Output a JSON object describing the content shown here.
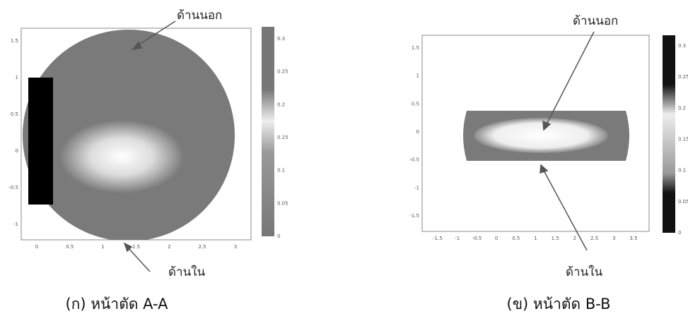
{
  "panels": [
    {
      "caption": "(ก) หน้าตัด A-A",
      "outer_label": "ด้านนอก",
      "inner_label": "ด้านใน",
      "yticks": [
        "1.5",
        "1",
        "0.5",
        "0",
        "-0.5",
        "-1"
      ],
      "xticks": [
        "0",
        "0.5",
        "1",
        "1.5",
        "2",
        "2.5",
        "3"
      ],
      "colorbar_ticks": [
        "0.3",
        "0.25",
        "0.2",
        "0.15",
        "0.1",
        "0.05",
        "0"
      ]
    },
    {
      "caption": "(ข) หน้าตัด B-B",
      "outer_label": "ด้านนอก",
      "inner_label": "ด้านใน",
      "yticks": [
        "1.5",
        "1",
        "0.5",
        "0",
        "-0.5",
        "-1",
        "-1.5"
      ],
      "xticks": [
        "-1.5",
        "-1",
        "-0.5",
        "0",
        "0.5",
        "1",
        "1.5",
        "2",
        "2.5",
        "3",
        "3.5"
      ],
      "colorbar_ticks": [
        "0.3",
        "0.25",
        "0.2",
        "0.15",
        "0.1",
        "0.05",
        "0"
      ]
    }
  ]
}
